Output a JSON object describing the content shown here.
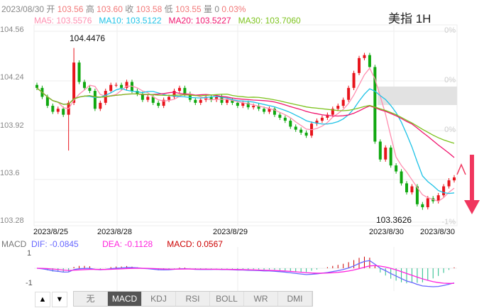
{
  "header": {
    "date": "2023/08/30",
    "open_label": "开",
    "open": "103.56",
    "high_label": "高",
    "high": "103.60",
    "close_label": "收",
    "close": "103.58",
    "low_label": "低",
    "low": "103.55",
    "vol_label": "量",
    "vol": "0",
    "change": "0.03%"
  },
  "ma": {
    "ma5": "MA5: 103.5576",
    "ma10": "MA10: 103.5122",
    "ma20": "MA20: 103.5227",
    "ma30": "MA30: 103.7060"
  },
  "title": "美指 1H",
  "colors": {
    "up": "#e8141c",
    "down": "#10a810",
    "ma5": "#ff8fb0",
    "ma10": "#1ec2e6",
    "ma20": "#f0146e",
    "ma30": "#7cc21c",
    "dif": "#6666ff",
    "dea": "#ff22dd",
    "macd_up": "#cc0000",
    "macd_down": "#22bb88",
    "arrow": "#f0365e"
  },
  "chart_data": {
    "type": "candlestick",
    "y_ticks": [
      "104.56",
      "104.24",
      "103.92",
      "103.6",
      "103.28"
    ],
    "ylim": [
      103.28,
      104.56
    ],
    "pct_ticks": [
      "0%",
      "0%",
      "0%",
      "-1%"
    ],
    "x_ticks": [
      "2023/8/25",
      "2023/8/28",
      "2023/8/29",
      "2023/8/30",
      "2023/8/30"
    ],
    "annotations": {
      "max": "104.4476",
      "min": "103.3626"
    },
    "closes": [
      104.18,
      104.12,
      104.06,
      104.02,
      104.04,
      104.0,
      104.08,
      104.35,
      104.22,
      104.18,
      104.16,
      104.04,
      104.08,
      104.16,
      104.2,
      104.2,
      104.18,
      104.22,
      104.16,
      104.14,
      104.1,
      104.12,
      104.08,
      104.06,
      104.1,
      104.12,
      104.16,
      104.18,
      104.14,
      104.1,
      104.08,
      104.1,
      104.12,
      104.1,
      104.12,
      104.08,
      104.1,
      104.08,
      104.06,
      104.08,
      104.05,
      104.06,
      104.04,
      104.02,
      104.04,
      104.0,
      103.98,
      103.96,
      103.92,
      103.9,
      103.88,
      103.86,
      103.94,
      103.96,
      103.98,
      104.0,
      104.04,
      104.06,
      104.1,
      104.18,
      104.28,
      104.38,
      104.4,
      104.32,
      103.82,
      103.7,
      103.78,
      103.66,
      103.62,
      103.54,
      103.48,
      103.52,
      103.4,
      103.38,
      103.44,
      103.42,
      103.46,
      103.52,
      103.56,
      103.58
    ],
    "special": {
      "low_wick_index": 6,
      "low_wick": 103.76,
      "max_index": 7,
      "min_index": 73
    }
  },
  "macd": {
    "label": "MACD",
    "dif": "DIF: -0.0845",
    "dea": "DEA: -0.1128",
    "macd": "MACD: 0.0567",
    "y_ticks": [
      "1",
      "-1"
    ]
  },
  "tabs": [
    "无",
    "MACD",
    "KDJ",
    "RSI",
    "BOLL",
    "WR",
    "DMI"
  ],
  "active_tab": "MACD",
  "nav": {
    "up": "▲",
    "down": "▼"
  }
}
